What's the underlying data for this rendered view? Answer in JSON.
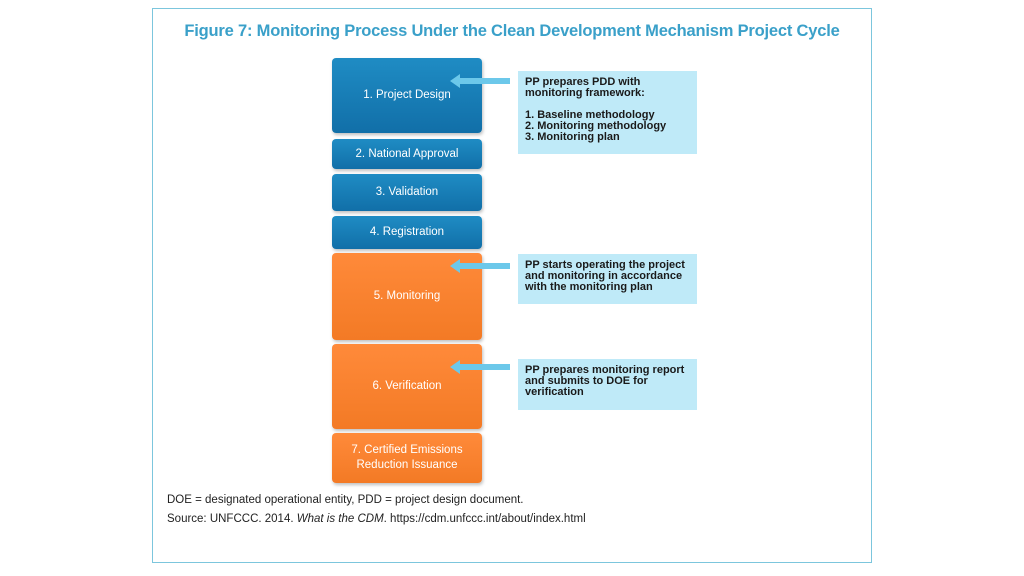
{
  "figure": {
    "title": "Figure 7: Monitoring Process Under the Clean Development Mechanism Project Cycle"
  },
  "steps": [
    {
      "label": "1. Project Design"
    },
    {
      "label": "2. National Approval"
    },
    {
      "label": "3. Validation"
    },
    {
      "label": "4. Registration"
    },
    {
      "label": "5. Monitoring"
    },
    {
      "label": "6. Verification"
    },
    {
      "label": "7. Certified Emissions Reduction Issuance"
    }
  ],
  "notes": {
    "design": {
      "intro": "PP prepares PDD with monitoring framework:",
      "items": [
        "1. Baseline methodology",
        "2. Monitoring methodology",
        "3. Monitoring plan"
      ]
    },
    "monitoring": "PP starts operating the project and monitoring in accordance with the monitoring plan",
    "verification": "PP prepares monitoring report and submits to DOE for verification"
  },
  "footer": {
    "abbreviations": "DOE = designated operational entity, PDD = project design document.",
    "source_prefix": "Source: UNFCCC. 2014. ",
    "source_title": "What is the CDM",
    "source_suffix": ". https://cdm.unfccc.int/about/index.html"
  },
  "colors": {
    "blue_step": "#1a7fbc",
    "orange_step": "#f47b28",
    "note_bg": "#bfeaf8",
    "arrow": "#6cc8ea",
    "title": "#3aa0c9"
  }
}
